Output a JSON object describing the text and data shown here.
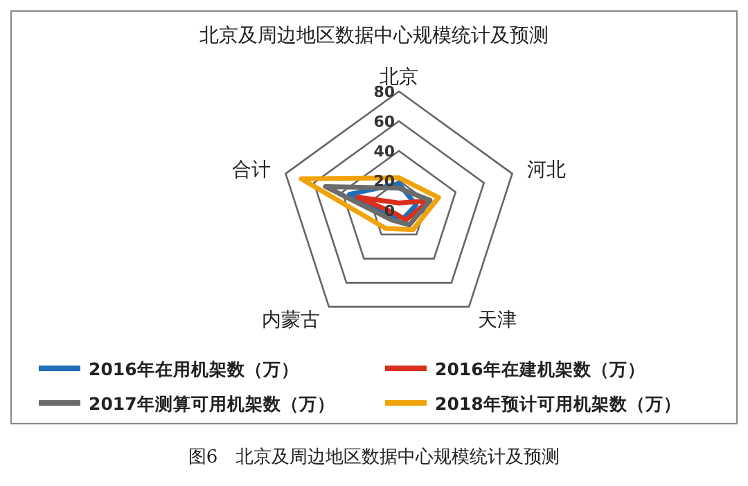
{
  "chart_data": {
    "type": "radar",
    "title": "北京及周边地区数据中心规模统计及预测",
    "categories": [
      "北京",
      "河北",
      "天津",
      "内蒙古",
      "合计"
    ],
    "ylim": [
      0,
      80
    ],
    "yticks": [
      0,
      20,
      40,
      60,
      80
    ],
    "legend": "bottom",
    "grid": true,
    "series": [
      {
        "name": "2016年在用机架数（万）",
        "color": "#1f6fb8",
        "values": [
          18,
          12,
          6,
          5,
          35
        ]
      },
      {
        "name": "2016年在建机架数（万）",
        "color": "#d9301e",
        "values": [
          5,
          21,
          8,
          3,
          29
        ]
      },
      {
        "name": "2017年测算可用机架数（万）",
        "color": "#6b6b6b",
        "values": [
          15,
          22,
          12,
          8,
          52
        ]
      },
      {
        "name": "2018年预计可用机架数（万）",
        "color": "#f0a30a",
        "values": [
          22,
          28,
          16,
          15,
          69
        ]
      }
    ],
    "annotations": [
      "图6　北京及周边地区数据中心规模统计及预测"
    ]
  }
}
